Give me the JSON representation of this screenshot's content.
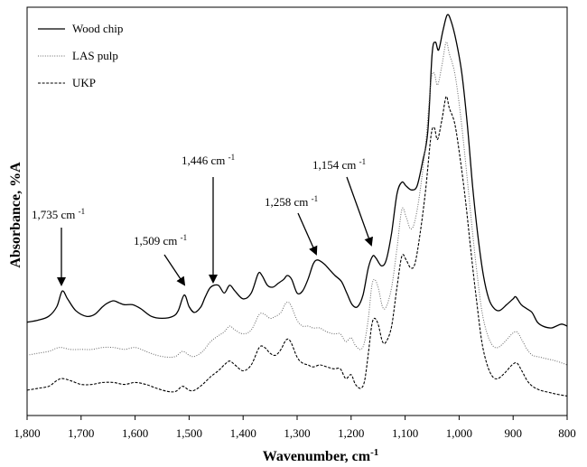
{
  "chart_data": {
    "type": "line",
    "title": "",
    "xlabel": "Wavenumber, cm-1",
    "ylabel": "Absorbance, %A",
    "xlim": [
      1800,
      800
    ],
    "x_reversed": true,
    "y_unlabeled": true,
    "grid": false,
    "legend_position": "top-left",
    "x_ticks": [
      {
        "value": 1800,
        "label": "1,800"
      },
      {
        "value": 1700,
        "label": "1,700"
      },
      {
        "value": 1600,
        "label": "1,600"
      },
      {
        "value": 1500,
        "label": "1,500"
      },
      {
        "value": 1400,
        "label": "1,400"
      },
      {
        "value": 1300,
        "label": "1,300"
      },
      {
        "value": 1200,
        "label": "1,200"
      },
      {
        "value": 1100,
        "label": "1,100"
      },
      {
        "value": 1000,
        "label": "1,000"
      },
      {
        "value": 900,
        "label": "900"
      },
      {
        "value": 800,
        "label": "800"
      }
    ],
    "series": [
      {
        "name": "Wood chip",
        "style": "solid",
        "color": "#000000",
        "points": [
          [
            1800,
            0.21
          ],
          [
            1780,
            0.215
          ],
          [
            1760,
            0.225
          ],
          [
            1745,
            0.25
          ],
          [
            1735,
            0.29
          ],
          [
            1725,
            0.27
          ],
          [
            1710,
            0.24
          ],
          [
            1690,
            0.225
          ],
          [
            1675,
            0.23
          ],
          [
            1660,
            0.25
          ],
          [
            1650,
            0.26
          ],
          [
            1640,
            0.265
          ],
          [
            1630,
            0.26
          ],
          [
            1620,
            0.255
          ],
          [
            1605,
            0.255
          ],
          [
            1590,
            0.245
          ],
          [
            1570,
            0.225
          ],
          [
            1550,
            0.22
          ],
          [
            1530,
            0.225
          ],
          [
            1520,
            0.24
          ],
          [
            1509,
            0.28
          ],
          [
            1500,
            0.25
          ],
          [
            1490,
            0.235
          ],
          [
            1478,
            0.25
          ],
          [
            1470,
            0.275
          ],
          [
            1460,
            0.3
          ],
          [
            1446,
            0.305
          ],
          [
            1435,
            0.285
          ],
          [
            1425,
            0.305
          ],
          [
            1415,
            0.29
          ],
          [
            1400,
            0.27
          ],
          [
            1385,
            0.285
          ],
          [
            1372,
            0.335
          ],
          [
            1365,
            0.33
          ],
          [
            1355,
            0.305
          ],
          [
            1345,
            0.3
          ],
          [
            1335,
            0.31
          ],
          [
            1325,
            0.32
          ],
          [
            1318,
            0.33
          ],
          [
            1310,
            0.32
          ],
          [
            1300,
            0.285
          ],
          [
            1290,
            0.29
          ],
          [
            1280,
            0.32
          ],
          [
            1270,
            0.36
          ],
          [
            1262,
            0.37
          ],
          [
            1250,
            0.36
          ],
          [
            1240,
            0.345
          ],
          [
            1230,
            0.33
          ],
          [
            1218,
            0.315
          ],
          [
            1208,
            0.285
          ],
          [
            1198,
            0.255
          ],
          [
            1188,
            0.25
          ],
          [
            1178,
            0.28
          ],
          [
            1168,
            0.35
          ],
          [
            1160,
            0.38
          ],
          [
            1154,
            0.375
          ],
          [
            1144,
            0.355
          ],
          [
            1135,
            0.37
          ],
          [
            1125,
            0.44
          ],
          [
            1115,
            0.54
          ],
          [
            1106,
            0.57
          ],
          [
            1098,
            0.56
          ],
          [
            1088,
            0.55
          ],
          [
            1078,
            0.56
          ],
          [
            1068,
            0.62
          ],
          [
            1058,
            0.7
          ],
          [
            1050,
            0.9
          ],
          [
            1044,
            0.93
          ],
          [
            1038,
            0.91
          ],
          [
            1030,
            0.96
          ],
          [
            1022,
            1.0
          ],
          [
            1015,
            0.985
          ],
          [
            1005,
            0.93
          ],
          [
            995,
            0.85
          ],
          [
            985,
            0.72
          ],
          [
            975,
            0.56
          ],
          [
            965,
            0.43
          ],
          [
            955,
            0.33
          ],
          [
            945,
            0.27
          ],
          [
            935,
            0.245
          ],
          [
            925,
            0.24
          ],
          [
            912,
            0.255
          ],
          [
            900,
            0.27
          ],
          [
            895,
            0.275
          ],
          [
            885,
            0.255
          ],
          [
            875,
            0.245
          ],
          [
            865,
            0.235
          ],
          [
            855,
            0.21
          ],
          [
            845,
            0.2
          ],
          [
            830,
            0.195
          ],
          [
            820,
            0.2
          ],
          [
            810,
            0.205
          ],
          [
            800,
            0.2
          ]
        ]
      },
      {
        "name": "LAS pulp",
        "style": "dotted",
        "color": "#666666",
        "points": [
          [
            1800,
            0.125
          ],
          [
            1780,
            0.13
          ],
          [
            1760,
            0.135
          ],
          [
            1740,
            0.145
          ],
          [
            1720,
            0.14
          ],
          [
            1700,
            0.14
          ],
          [
            1680,
            0.14
          ],
          [
            1660,
            0.145
          ],
          [
            1640,
            0.145
          ],
          [
            1620,
            0.14
          ],
          [
            1600,
            0.145
          ],
          [
            1580,
            0.135
          ],
          [
            1560,
            0.125
          ],
          [
            1540,
            0.12
          ],
          [
            1525,
            0.122
          ],
          [
            1512,
            0.135
          ],
          [
            1500,
            0.125
          ],
          [
            1490,
            0.122
          ],
          [
            1475,
            0.135
          ],
          [
            1460,
            0.16
          ],
          [
            1446,
            0.175
          ],
          [
            1435,
            0.185
          ],
          [
            1425,
            0.2
          ],
          [
            1415,
            0.19
          ],
          [
            1400,
            0.18
          ],
          [
            1385,
            0.19
          ],
          [
            1370,
            0.23
          ],
          [
            1360,
            0.23
          ],
          [
            1350,
            0.22
          ],
          [
            1340,
            0.225
          ],
          [
            1330,
            0.235
          ],
          [
            1320,
            0.26
          ],
          [
            1312,
            0.255
          ],
          [
            1300,
            0.215
          ],
          [
            1290,
            0.2
          ],
          [
            1280,
            0.2
          ],
          [
            1270,
            0.195
          ],
          [
            1258,
            0.195
          ],
          [
            1245,
            0.185
          ],
          [
            1232,
            0.18
          ],
          [
            1220,
            0.18
          ],
          [
            1210,
            0.16
          ],
          [
            1200,
            0.17
          ],
          [
            1192,
            0.15
          ],
          [
            1182,
            0.14
          ],
          [
            1175,
            0.16
          ],
          [
            1168,
            0.22
          ],
          [
            1162,
            0.3
          ],
          [
            1157,
            0.32
          ],
          [
            1150,
            0.3
          ],
          [
            1142,
            0.25
          ],
          [
            1135,
            0.25
          ],
          [
            1125,
            0.3
          ],
          [
            1115,
            0.4
          ],
          [
            1106,
            0.5
          ],
          [
            1098,
            0.48
          ],
          [
            1090,
            0.45
          ],
          [
            1082,
            0.47
          ],
          [
            1072,
            0.55
          ],
          [
            1062,
            0.67
          ],
          [
            1052,
            0.83
          ],
          [
            1046,
            0.85
          ],
          [
            1040,
            0.82
          ],
          [
            1032,
            0.87
          ],
          [
            1024,
            0.93
          ],
          [
            1018,
            0.9
          ],
          [
            1008,
            0.85
          ],
          [
            998,
            0.75
          ],
          [
            988,
            0.62
          ],
          [
            978,
            0.48
          ],
          [
            968,
            0.35
          ],
          [
            958,
            0.24
          ],
          [
            948,
            0.18
          ],
          [
            938,
            0.15
          ],
          [
            928,
            0.145
          ],
          [
            915,
            0.16
          ],
          [
            902,
            0.18
          ],
          [
            893,
            0.185
          ],
          [
            884,
            0.165
          ],
          [
            874,
            0.14
          ],
          [
            864,
            0.125
          ],
          [
            850,
            0.12
          ],
          [
            835,
            0.115
          ],
          [
            820,
            0.11
          ],
          [
            800,
            0.1
          ]
        ]
      },
      {
        "name": "UKP",
        "style": "dashed",
        "color": "#000000",
        "points": [
          [
            1800,
            0.035
          ],
          [
            1780,
            0.04
          ],
          [
            1760,
            0.045
          ],
          [
            1745,
            0.06
          ],
          [
            1735,
            0.065
          ],
          [
            1720,
            0.06
          ],
          [
            1700,
            0.05
          ],
          [
            1680,
            0.05
          ],
          [
            1660,
            0.055
          ],
          [
            1640,
            0.055
          ],
          [
            1620,
            0.05
          ],
          [
            1600,
            0.055
          ],
          [
            1580,
            0.05
          ],
          [
            1560,
            0.04
          ],
          [
            1540,
            0.032
          ],
          [
            1525,
            0.032
          ],
          [
            1512,
            0.045
          ],
          [
            1500,
            0.035
          ],
          [
            1490,
            0.035
          ],
          [
            1475,
            0.05
          ],
          [
            1460,
            0.07
          ],
          [
            1446,
            0.085
          ],
          [
            1435,
            0.1
          ],
          [
            1425,
            0.11
          ],
          [
            1415,
            0.1
          ],
          [
            1400,
            0.085
          ],
          [
            1385,
            0.1
          ],
          [
            1370,
            0.145
          ],
          [
            1360,
            0.145
          ],
          [
            1350,
            0.13
          ],
          [
            1340,
            0.125
          ],
          [
            1330,
            0.14
          ],
          [
            1320,
            0.165
          ],
          [
            1312,
            0.16
          ],
          [
            1300,
            0.12
          ],
          [
            1290,
            0.105
          ],
          [
            1280,
            0.1
          ],
          [
            1270,
            0.095
          ],
          [
            1258,
            0.1
          ],
          [
            1245,
            0.095
          ],
          [
            1232,
            0.09
          ],
          [
            1220,
            0.09
          ],
          [
            1210,
            0.065
          ],
          [
            1200,
            0.075
          ],
          [
            1192,
            0.05
          ],
          [
            1182,
            0.04
          ],
          [
            1175,
            0.06
          ],
          [
            1168,
            0.13
          ],
          [
            1162,
            0.2
          ],
          [
            1157,
            0.22
          ],
          [
            1150,
            0.205
          ],
          [
            1142,
            0.16
          ],
          [
            1135,
            0.16
          ],
          [
            1125,
            0.2
          ],
          [
            1115,
            0.3
          ],
          [
            1106,
            0.38
          ],
          [
            1098,
            0.37
          ],
          [
            1090,
            0.35
          ],
          [
            1082,
            0.36
          ],
          [
            1072,
            0.44
          ],
          [
            1062,
            0.55
          ],
          [
            1052,
            0.69
          ],
          [
            1046,
            0.71
          ],
          [
            1040,
            0.68
          ],
          [
            1032,
            0.73
          ],
          [
            1024,
            0.79
          ],
          [
            1018,
            0.76
          ],
          [
            1008,
            0.72
          ],
          [
            998,
            0.63
          ],
          [
            988,
            0.52
          ],
          [
            978,
            0.39
          ],
          [
            968,
            0.27
          ],
          [
            958,
            0.16
          ],
          [
            948,
            0.1
          ],
          [
            938,
            0.07
          ],
          [
            928,
            0.065
          ],
          [
            915,
            0.08
          ],
          [
            902,
            0.1
          ],
          [
            893,
            0.105
          ],
          [
            884,
            0.085
          ],
          [
            874,
            0.06
          ],
          [
            864,
            0.045
          ],
          [
            850,
            0.035
          ],
          [
            835,
            0.03
          ],
          [
            820,
            0.025
          ],
          [
            800,
            0.02
          ]
        ]
      }
    ],
    "annotations": [
      {
        "text": "1,735 cm",
        "sup": "-1",
        "x": 1735,
        "y": 0.29
      },
      {
        "text": "1,509 cm",
        "sup": "-1",
        "x": 1509,
        "y": 0.28
      },
      {
        "text": "1,446 cm",
        "sup": "-1",
        "x": 1446,
        "y": 0.305
      },
      {
        "text": "1,258 cm",
        "sup": "-1",
        "x": 1258,
        "y": 0.37
      },
      {
        "text": "1,154 cm",
        "sup": "-1",
        "x": 1154,
        "y": 0.385
      }
    ]
  }
}
